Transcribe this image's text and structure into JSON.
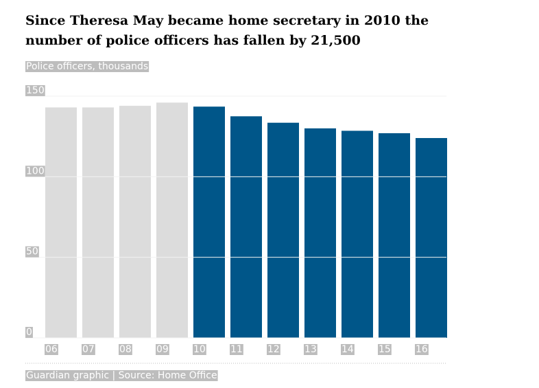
{
  "chart_data": {
    "type": "bar",
    "title": [
      "Since Theresa May became home secretary in 2010 the",
      "number of police officers has fallen by 21,500"
    ],
    "subtitle": "Police officers, thousands",
    "source": "Guardian graphic | Source: Home Office",
    "categories": [
      "06",
      "07",
      "08",
      "09",
      "10",
      "11",
      "12",
      "13",
      "14",
      "15",
      "16"
    ],
    "values": [
      143,
      143,
      144,
      146,
      143.5,
      137.5,
      133.5,
      130,
      128.5,
      127,
      124
    ],
    "colors": [
      "#dcdcdc",
      "#dcdcdc",
      "#dcdcdc",
      "#dcdcdc",
      "#005689",
      "#005689",
      "#005689",
      "#005689",
      "#005689",
      "#005689",
      "#005689"
    ],
    "ylim": [
      0,
      150
    ],
    "yticks": [
      0,
      50,
      100,
      150
    ],
    "grid": true
  }
}
